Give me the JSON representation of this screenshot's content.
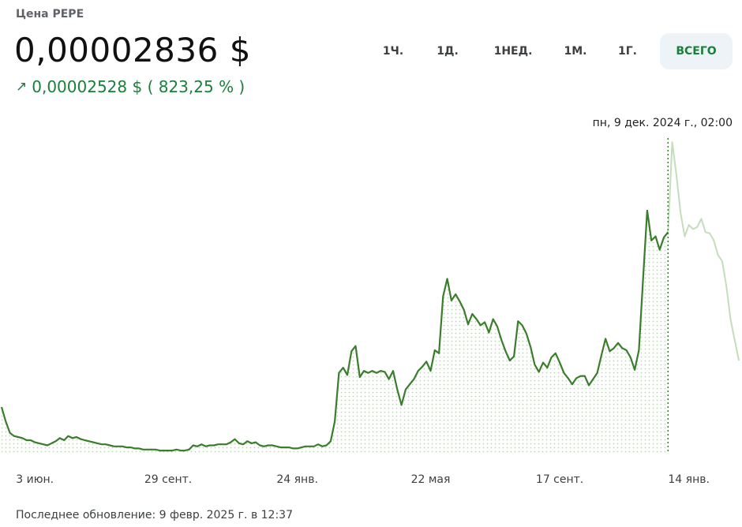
{
  "header": {
    "title": "Цена PEPE",
    "price": "0,00002836 $",
    "change_icon": "arrow-up-right-icon",
    "change": "0,00002528 $ ( 823,25 % )",
    "change_color": "#188038"
  },
  "ranges": [
    {
      "label": "1Ч.",
      "active": false
    },
    {
      "label": "1Д.",
      "active": false
    },
    {
      "label": "1НЕД.",
      "active": false
    },
    {
      "label": "1М.",
      "active": false
    },
    {
      "label": "1Г.",
      "active": false
    },
    {
      "label": "ВСЕГО",
      "active": true
    }
  ],
  "hover": {
    "label": "пн, 9 дек. 2024 г., 02:00",
    "index": 160
  },
  "footer": "Последнее обновление: 9 февр. 2025 г. в 12:37",
  "colors": {
    "line": "#3a7d2c",
    "line_faded": "#c5dcbd",
    "dots": "#b9d8b0",
    "cursor": "#3a7d2c"
  },
  "chart_data": {
    "type": "line",
    "x_tick_labels": [
      "3 июн.",
      "29 сент.",
      "24 янв.",
      "22 мая",
      "17 сент.",
      "14 янв."
    ],
    "x_tick_indices": [
      8,
      40,
      71,
      103,
      134,
      165
    ],
    "ylim": [
      0,
      3.05e-05
    ],
    "series": [
      {
        "values": [
          4.5e-06,
          3.1e-06,
          2e-06,
          1.7e-06,
          1.6e-06,
          1.5e-06,
          1.3e-06,
          1.3e-06,
          1.1e-06,
          1e-06,
          9e-07,
          8e-07,
          1e-06,
          1.2e-06,
          1.5e-06,
          1.3e-06,
          1.7e-06,
          1.5e-06,
          1.6e-06,
          1.4e-06,
          1.3e-06,
          1.2e-06,
          1.1e-06,
          1e-06,
          9e-07,
          9e-07,
          8e-07,
          7e-07,
          7e-07,
          7e-07,
          6e-07,
          6e-07,
          5e-07,
          5e-07,
          4e-07,
          4e-07,
          4e-07,
          4e-07,
          3e-07,
          3e-07,
          3e-07,
          3e-07,
          4e-07,
          3e-07,
          3e-07,
          4e-07,
          8e-07,
          7e-07,
          9e-07,
          7e-07,
          8e-07,
          8e-07,
          9e-07,
          9e-07,
          9e-07,
          1.1e-06,
          1.4e-06,
          1e-06,
          9e-07,
          1.2e-06,
          1e-06,
          1.1e-06,
          8e-07,
          7e-07,
          8e-07,
          8e-07,
          7e-07,
          6e-07,
          6e-07,
          6e-07,
          5e-07,
          5e-07,
          6e-07,
          7e-07,
          7e-07,
          7e-07,
          9e-07,
          7e-07,
          8e-07,
          1.2e-06,
          3.1e-06,
          7.8e-06,
          8.3e-06,
          7.6e-06,
          9.9e-06,
          1.04e-05,
          7.4e-06,
          8e-06,
          7.8e-06,
          8e-06,
          7.8e-06,
          8e-06,
          7.9e-06,
          7.2e-06,
          8e-06,
          6.2e-06,
          4.7e-06,
          6.2e-06,
          6.7e-06,
          7.2e-06,
          8e-06,
          8.4e-06,
          8.9e-06,
          8e-06,
          1e-05,
          9.7e-06,
          1.52e-05,
          1.69e-05,
          1.48e-05,
          1.54e-05,
          1.47e-05,
          1.39e-05,
          1.25e-05,
          1.35e-05,
          1.3e-05,
          1.24e-05,
          1.27e-05,
          1.17e-05,
          1.3e-05,
          1.23e-05,
          1.1e-05,
          9.9e-06,
          9e-06,
          9.4e-06,
          1.28e-05,
          1.24e-05,
          1.16e-05,
          1.03e-05,
          8.6e-06,
          7.9e-06,
          8.8e-06,
          8.3e-06,
          9.3e-06,
          9.7e-06,
          8.8e-06,
          7.8e-06,
          7.3e-06,
          6.7e-06,
          7.3e-06,
          7.5e-06,
          7.5e-06,
          6.6e-06,
          7.2e-06,
          7.8e-06,
          9.5e-06,
          1.11e-05,
          9.9e-06,
          1.02e-05,
          1.07e-05,
          1.02e-05,
          1e-05,
          9.3e-06,
          8.1e-06,
          1e-05,
          1.68e-05,
          2.35e-05,
          2.06e-05,
          2.1e-05,
          1.97e-05,
          2.09e-05,
          2.14e-05,
          3.01e-05,
          2.7e-05,
          2.33e-05,
          2.1e-05,
          2.21e-05,
          2.17e-05,
          2.19e-05,
          2.27e-05,
          2.14e-05,
          2.13e-05,
          2.06e-05,
          1.92e-05,
          1.86e-05,
          1.62e-05,
          1.3e-05,
          1.1e-05,
          9e-06
        ]
      }
    ]
  }
}
